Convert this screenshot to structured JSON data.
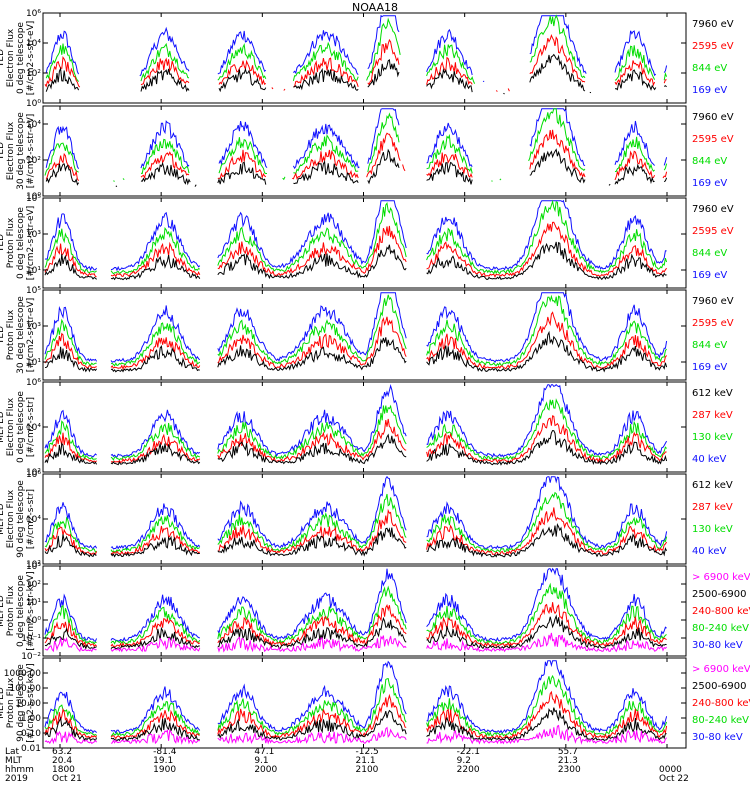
{
  "title": "NOAA18",
  "colors": {
    "blue": "#1010ff",
    "red": "#ff0000",
    "green": "#00dd00",
    "black": "#000000",
    "magenta": "#ff00ff"
  },
  "chart_data": {
    "type": "line",
    "panels": [
      {
        "id": "ted-e-0",
        "ylabel": [
          "TED",
          "Electron Flux",
          "0 deg telescope",
          "[#/cm2-s-str-eV]"
        ],
        "ylim": [
          1,
          1000000
        ],
        "log": true,
        "ticks": [
          [
            "10⁰",
            1
          ],
          [
            "10²",
            100
          ],
          [
            "10⁴",
            10000
          ],
          [
            "10⁶",
            1000000
          ]
        ],
        "legend": [
          [
            "7960 eV",
            "black"
          ],
          [
            "2595 eV",
            "red"
          ],
          [
            "844 eV",
            "green"
          ],
          [
            "169 eV",
            "blue"
          ]
        ]
      },
      {
        "id": "ted-e-30",
        "ylabel": [
          "TED",
          "Electron Flux",
          "30 deg telescope",
          "[#/cm2-s-str-eV]"
        ],
        "ylim": [
          1,
          100000
        ],
        "log": true,
        "ticks": [
          [
            "10⁰",
            1
          ],
          [
            "10²",
            100
          ],
          [
            "10⁴",
            10000
          ]
        ],
        "legend": [
          [
            "7960 eV",
            "black"
          ],
          [
            "2595 eV",
            "red"
          ],
          [
            "844 eV",
            "green"
          ],
          [
            "169 eV",
            "blue"
          ]
        ]
      },
      {
        "id": "ted-p-0",
        "ylabel": [
          "TED",
          "Proton Flux",
          "0 deg telescope",
          "[#/cm2-s-str-eV]"
        ],
        "ylim": [
          1,
          100000
        ],
        "log": true,
        "ticks": [
          [
            "10¹",
            10
          ],
          [
            "10³",
            1000
          ],
          [
            "10⁵",
            100000
          ]
        ],
        "legend": [
          [
            "7960 eV",
            "black"
          ],
          [
            "2595 eV",
            "red"
          ],
          [
            "844 eV",
            "green"
          ],
          [
            "169 eV",
            "blue"
          ]
        ]
      },
      {
        "id": "ted-p-30",
        "ylabel": [
          "TED",
          "Proton Flux",
          "30 deg telescope",
          "[#/cm2-s-str-eV]"
        ],
        "ylim": [
          1,
          100000
        ],
        "log": true,
        "ticks": [
          [
            "10¹",
            10
          ],
          [
            "10³",
            1000
          ],
          [
            "10⁵",
            100000
          ]
        ],
        "legend": [
          [
            "7960 eV",
            "black"
          ],
          [
            "2595 eV",
            "red"
          ],
          [
            "844 eV",
            "green"
          ],
          [
            "169 eV",
            "blue"
          ]
        ]
      },
      {
        "id": "meped-e-0",
        "ylabel": [
          "MEPED",
          "Electron Flux",
          "0 deg telescope",
          "[#/cm2-s-str]"
        ],
        "ylim": [
          100,
          1000000
        ],
        "log": true,
        "ticks": [
          [
            "10²",
            100
          ],
          [
            "10⁴",
            10000
          ],
          [
            "10⁶",
            1000000
          ]
        ],
        "legend": [
          [
            "612 keV",
            "black"
          ],
          [
            "287 keV",
            "red"
          ],
          [
            "130 keV",
            "green"
          ],
          [
            "40 keV",
            "blue"
          ]
        ]
      },
      {
        "id": "meped-e-90",
        "ylabel": [
          "MEPED",
          "Electron Flux",
          "90 deg telescope",
          "[#/cm2-s-str]"
        ],
        "ylim": [
          100,
          1000000
        ],
        "log": true,
        "ticks": [
          [
            "10²",
            100
          ],
          [
            "10⁴",
            10000
          ],
          [
            "10⁶",
            1000000
          ]
        ],
        "legend": [
          [
            "612 keV",
            "black"
          ],
          [
            "287 keV",
            "red"
          ],
          [
            "130 keV",
            "green"
          ],
          [
            "40 keV",
            "blue"
          ]
        ]
      },
      {
        "id": "meped-p-0",
        "ylabel": [
          "MEPED",
          "Proton Flux",
          "0 deg telescope",
          "[#/cm2-s-str-keV]"
        ],
        "ylim": [
          0.01,
          1000
        ],
        "log": true,
        "ticks": [
          [
            "10⁻²",
            0.01
          ],
          [
            "10⁻¹",
            0.1
          ],
          [
            "10⁰",
            1
          ],
          [
            "10¹",
            10
          ],
          [
            "10²",
            100
          ],
          [
            "10³",
            1000
          ]
        ],
        "legend": [
          [
            "> 6900 keV",
            "magenta"
          ],
          [
            "2500-6900",
            "black"
          ],
          [
            "240-800 keV",
            "red"
          ],
          [
            "80-240 keV",
            "green"
          ],
          [
            "30-80 keV",
            "blue"
          ]
        ]
      },
      {
        "id": "meped-p-90",
        "ylabel": [
          "MEPED",
          "Proton Flux",
          "90 deg telescope",
          "[#/cm2-s-str-keV]"
        ],
        "ylim": [
          0.01,
          10000
        ],
        "log": true,
        "ticks": [
          [
            "0.01",
            0.01
          ],
          [
            "0.10",
            0.1
          ],
          [
            "1.00",
            1
          ],
          [
            "10.00",
            10
          ],
          [
            "100.00",
            100
          ],
          [
            "1000.00",
            1000
          ]
        ],
        "legend": [
          [
            "> 6900 keV",
            "magenta"
          ],
          [
            "2500-6900",
            "black"
          ],
          [
            "240-800 keV",
            "red"
          ],
          [
            "80-240 keV",
            "green"
          ],
          [
            "30-80 keV",
            "blue"
          ]
        ]
      }
    ],
    "x_axis": {
      "row_labels": [
        "Lat",
        "MLT",
        "hhmm",
        "2019"
      ],
      "ticks": [
        {
          "lat": "63.2",
          "mlt": "20.4",
          "hhmm": "1800",
          "date": "Oct 21"
        },
        {
          "lat": "-81.4",
          "mlt": "19.1",
          "hhmm": "1900",
          "date": ""
        },
        {
          "lat": "47.1",
          "mlt": "9.1",
          "hhmm": "2000",
          "date": ""
        },
        {
          "lat": "-12.5",
          "mlt": "21.1",
          "hhmm": "2100",
          "date": ""
        },
        {
          "lat": "-22.1",
          "mlt": "9.2",
          "hhmm": "2200",
          "date": ""
        },
        {
          "lat": "55.7",
          "mlt": "21.3",
          "hhmm": "2300",
          "date": ""
        },
        {
          "lat": "",
          "mlt": "",
          "hhmm": "0000",
          "date": "Oct 22"
        }
      ]
    },
    "passes": [
      {
        "center": 1900,
        "kind": "auroral"
      },
      {
        "center": 2045,
        "kind": "auroral"
      },
      {
        "center": 2235,
        "kind": "saa"
      },
      {
        "center": 2105,
        "kind": "saa"
      }
    ]
  }
}
